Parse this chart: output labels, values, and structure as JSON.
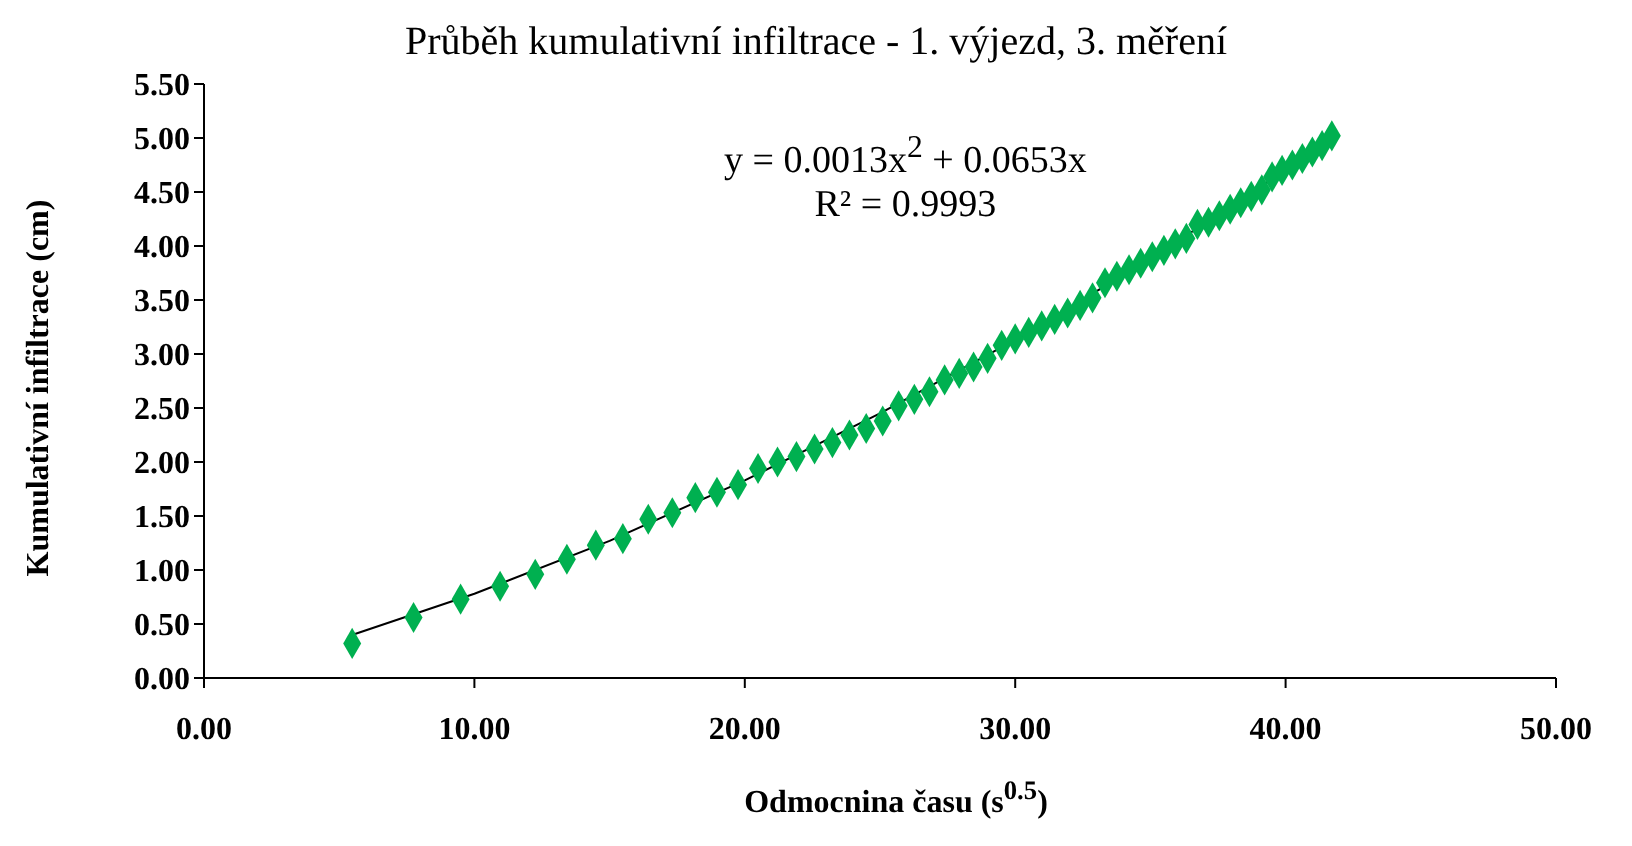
{
  "chart_data": {
    "type": "scatter",
    "title": "Průběh kumulativní infiltrace  - 1. výjezd, 3. měření",
    "xlabel": "Odmocnina času (s$^{0.5}$)",
    "ylabel": "Kumulativní infiltrace (cm)",
    "annotations": [
      "y = 0.0013x$^{2}$ + 0.0653x",
      "R² = 0.9993"
    ],
    "xlim": [
      0,
      50
    ],
    "ylim": [
      0,
      5.5
    ],
    "xticks": [
      {
        "value": 0,
        "label": "0.00"
      },
      {
        "value": 10,
        "label": "10.00"
      },
      {
        "value": 20,
        "label": "20.00"
      },
      {
        "value": 30,
        "label": "30.00"
      },
      {
        "value": 40,
        "label": "40.00"
      },
      {
        "value": 50,
        "label": "50.00"
      }
    ],
    "yticks": [
      {
        "value": 0,
        "label": "0.00"
      },
      {
        "value": 0.5,
        "label": "0.50"
      },
      {
        "value": 1,
        "label": "1.00"
      },
      {
        "value": 1.5,
        "label": "1.50"
      },
      {
        "value": 2,
        "label": "2.00"
      },
      {
        "value": 2.5,
        "label": "2.50"
      },
      {
        "value": 3,
        "label": "3.00"
      },
      {
        "value": 3.5,
        "label": "3.50"
      },
      {
        "value": 4,
        "label": "4.00"
      },
      {
        "value": 4.5,
        "label": "4.50"
      },
      {
        "value": 5,
        "label": "5.00"
      },
      {
        "value": 5.5,
        "label": "5.50"
      }
    ],
    "grid": false,
    "legend": false,
    "marker": "diamond",
    "series": [
      {
        "color": "#00b050",
        "x": [
          5.48,
          7.75,
          9.49,
          10.95,
          12.25,
          13.42,
          14.49,
          15.49,
          16.43,
          17.32,
          18.17,
          18.97,
          19.75,
          20.49,
          21.21,
          21.91,
          22.58,
          23.24,
          23.87,
          24.49,
          25.1,
          25.69,
          26.27,
          26.83,
          27.39,
          27.93,
          28.46,
          28.98,
          29.5,
          30.0,
          30.5,
          30.98,
          31.46,
          31.94,
          32.4,
          32.86,
          33.32,
          33.76,
          34.21,
          34.64,
          35.07,
          35.5,
          35.92,
          36.33,
          36.74,
          37.15,
          37.55,
          37.95,
          38.34,
          38.73,
          39.12,
          39.5,
          39.87,
          40.25,
          40.62,
          40.99,
          41.35,
          41.71
        ],
        "values": [
          0.32,
          0.56,
          0.73,
          0.85,
          0.96,
          1.1,
          1.23,
          1.29,
          1.47,
          1.53,
          1.67,
          1.72,
          1.79,
          1.94,
          2.0,
          2.05,
          2.12,
          2.18,
          2.25,
          2.31,
          2.38,
          2.52,
          2.58,
          2.65,
          2.76,
          2.82,
          2.88,
          2.96,
          3.08,
          3.14,
          3.2,
          3.26,
          3.32,
          3.38,
          3.45,
          3.52,
          3.66,
          3.72,
          3.78,
          3.84,
          3.9,
          3.96,
          4.02,
          4.07,
          4.2,
          4.22,
          4.28,
          4.34,
          4.4,
          4.46,
          4.52,
          4.64,
          4.7,
          4.75,
          4.81,
          4.87,
          4.93,
          5.02
        ]
      },
      {
        "type": "line",
        "color": "#000000",
        "marker": "none",
        "x": [
          5.5,
          10,
          15,
          20,
          25,
          30,
          35,
          41.7
        ],
        "values": [
          0.4,
          0.78,
          1.27,
          1.83,
          2.45,
          3.13,
          3.88,
          4.98
        ]
      }
    ]
  }
}
